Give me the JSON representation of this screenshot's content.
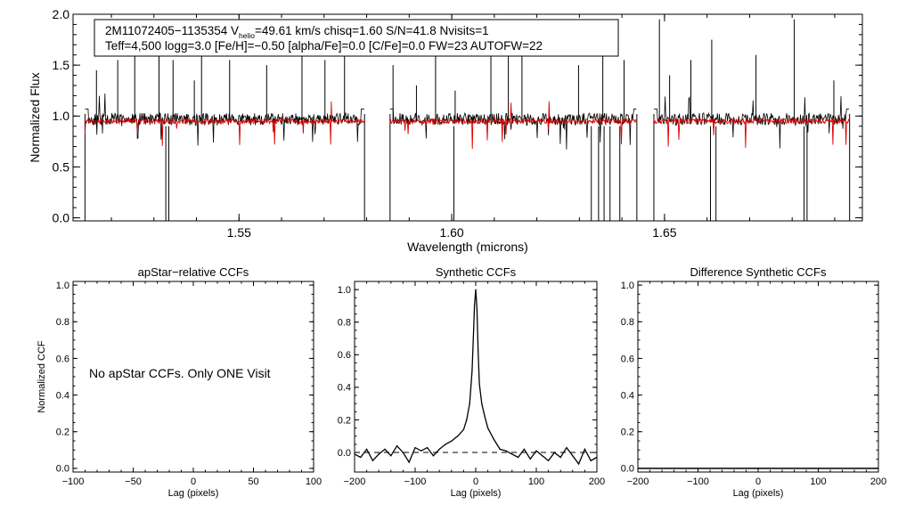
{
  "chart_data": [
    {
      "type": "line",
      "id": "spectrum",
      "xlabel": "Wavelength (microns)",
      "ylabel": "Normalized Flux",
      "xlim": [
        1.511,
        1.6965
      ],
      "ylim": [
        -0.03,
        2.0
      ],
      "x_ticks": [
        1.55,
        1.6,
        1.65
      ],
      "x_tick_labels": [
        "1.55",
        "1.60",
        "1.65"
      ],
      "y_ticks": [
        0.0,
        0.5,
        1.0,
        1.5,
        2.0
      ],
      "y_tick_labels": [
        "0.0",
        "0.5",
        "1.0",
        "1.5",
        "2.0"
      ],
      "info_box": {
        "star": "2M11072405−1135354",
        "v_prefix": "V",
        "v_sub": "helio",
        "line1_rest": "=49.61 km/s  chisq=1.60  S/N=41.8  Nvisits=1",
        "line2": "Teff=4,500 logg=3.0 [Fe/H]=−0.50 [alpha/Fe]=0.0 [C/Fe]=0.0 FW=23 AUTOFW=22"
      },
      "chips": [
        [
          1.5138,
          1.5795
        ],
        [
          1.5855,
          1.6435
        ],
        [
          1.6475,
          1.6935
        ]
      ],
      "series": [
        {
          "name": "observed",
          "color": "#000000",
          "level": 0.95
        },
        {
          "name": "synthetic",
          "color": "#dd0000",
          "level": 0.95
        }
      ]
    },
    {
      "type": "line",
      "id": "ccf_apstar",
      "title": "apStar−relative CCFs",
      "xlabel": "Lag (pixels)",
      "ylabel": "Normalized CCF",
      "xlim": [
        -100,
        100
      ],
      "ylim": [
        -0.02,
        1.02
      ],
      "x_ticks": [
        -100,
        -50,
        0,
        50,
        100
      ],
      "x_tick_labels": [
        "−100",
        "−50",
        "0",
        "50",
        "100"
      ],
      "y_ticks": [
        0.0,
        0.2,
        0.4,
        0.6,
        0.8,
        1.0
      ],
      "y_tick_labels": [
        "0.0",
        "0.2",
        "0.4",
        "0.6",
        "0.8",
        "1.0"
      ],
      "message": "No apStar CCFs.  Only ONE Visit",
      "series": []
    },
    {
      "type": "line",
      "id": "ccf_synthetic",
      "title": "Synthetic CCFs",
      "xlabel": "Lag (pixels)",
      "xlim": [
        -200,
        200
      ],
      "ylim": [
        -0.12,
        1.05
      ],
      "x_ticks": [
        -200,
        -100,
        0,
        100,
        200
      ],
      "x_tick_labels": [
        "−200",
        "−100",
        "0",
        "100",
        "200"
      ],
      "y_ticks": [
        0.0,
        0.2,
        0.4,
        0.6,
        0.8,
        1.0
      ],
      "y_tick_labels": [
        "0.0",
        "0.2",
        "0.4",
        "0.6",
        "0.8",
        "1.0"
      ],
      "zero_line": 0.0,
      "series": [
        {
          "name": "ccf",
          "x": [
            -200,
            -190,
            -180,
            -170,
            -160,
            -150,
            -140,
            -130,
            -120,
            -110,
            -100,
            -90,
            -80,
            -70,
            -60,
            -50,
            -40,
            -30,
            -20,
            -15,
            -10,
            -6,
            -4,
            -2,
            0,
            2,
            4,
            6,
            10,
            15,
            20,
            30,
            40,
            50,
            60,
            70,
            80,
            90,
            100,
            110,
            120,
            130,
            140,
            150,
            160,
            170,
            180,
            190,
            200
          ],
          "y": [
            -0.01,
            -0.03,
            0.02,
            -0.05,
            -0.01,
            0.02,
            -0.02,
            0.04,
            0.0,
            -0.06,
            0.03,
            0.01,
            0.03,
            -0.02,
            0.02,
            0.05,
            0.07,
            0.1,
            0.14,
            0.2,
            0.3,
            0.5,
            0.7,
            0.9,
            1.0,
            0.88,
            0.62,
            0.42,
            0.3,
            0.22,
            0.15,
            0.08,
            0.02,
            0.01,
            -0.01,
            -0.03,
            0.02,
            -0.04,
            0.01,
            -0.02,
            -0.05,
            0.0,
            -0.03,
            0.03,
            -0.02,
            -0.07,
            0.02,
            -0.05,
            -0.03
          ]
        }
      ]
    },
    {
      "type": "line",
      "id": "ccf_difference",
      "title": "Difference Synthetic CCFs",
      "xlabel": "Lag (pixels)",
      "xlim": [
        -200,
        200
      ],
      "ylim": [
        -0.02,
        1.02
      ],
      "x_ticks": [
        -200,
        -100,
        0,
        100,
        200
      ],
      "x_tick_labels": [
        "−200",
        "−100",
        "0",
        "100",
        "200"
      ],
      "y_ticks": [
        0.0,
        0.2,
        0.4,
        0.6,
        0.8,
        1.0
      ],
      "y_tick_labels": [
        "0.0",
        "0.2",
        "0.4",
        "0.6",
        "0.8",
        "1.0"
      ],
      "series": [
        {
          "name": "difference",
          "x": [
            -200,
            200
          ],
          "y": [
            0.0,
            0.0
          ]
        }
      ]
    }
  ]
}
